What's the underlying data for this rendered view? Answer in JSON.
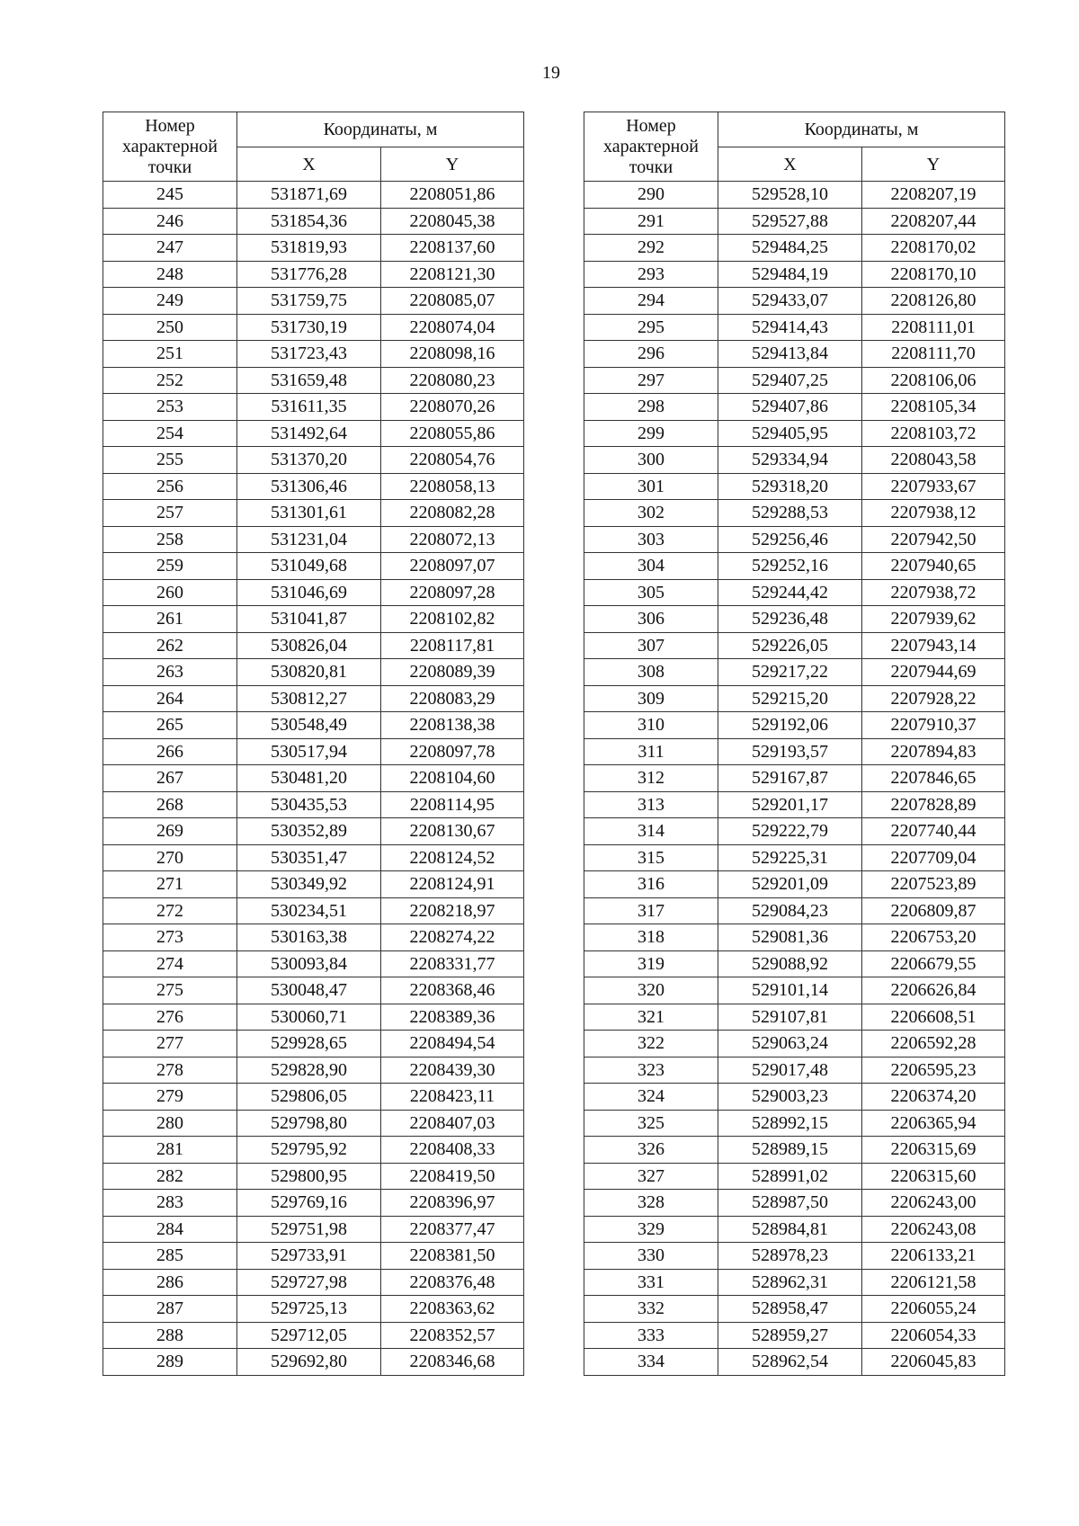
{
  "page_number": "19",
  "headers": {
    "point_number": "Номер характерной точки",
    "coordinates": "Координаты, м",
    "x": "X",
    "y": "Y"
  },
  "tables": [
    {
      "rows": [
        [
          "245",
          "531871,69",
          "2208051,86"
        ],
        [
          "246",
          "531854,36",
          "2208045,38"
        ],
        [
          "247",
          "531819,93",
          "2208137,60"
        ],
        [
          "248",
          "531776,28",
          "2208121,30"
        ],
        [
          "249",
          "531759,75",
          "2208085,07"
        ],
        [
          "250",
          "531730,19",
          "2208074,04"
        ],
        [
          "251",
          "531723,43",
          "2208098,16"
        ],
        [
          "252",
          "531659,48",
          "2208080,23"
        ],
        [
          "253",
          "531611,35",
          "2208070,26"
        ],
        [
          "254",
          "531492,64",
          "2208055,86"
        ],
        [
          "255",
          "531370,20",
          "2208054,76"
        ],
        [
          "256",
          "531306,46",
          "2208058,13"
        ],
        [
          "257",
          "531301,61",
          "2208082,28"
        ],
        [
          "258",
          "531231,04",
          "2208072,13"
        ],
        [
          "259",
          "531049,68",
          "2208097,07"
        ],
        [
          "260",
          "531046,69",
          "2208097,28"
        ],
        [
          "261",
          "531041,87",
          "2208102,82"
        ],
        [
          "262",
          "530826,04",
          "2208117,81"
        ],
        [
          "263",
          "530820,81",
          "2208089,39"
        ],
        [
          "264",
          "530812,27",
          "2208083,29"
        ],
        [
          "265",
          "530548,49",
          "2208138,38"
        ],
        [
          "266",
          "530517,94",
          "2208097,78"
        ],
        [
          "267",
          "530481,20",
          "2208104,60"
        ],
        [
          "268",
          "530435,53",
          "2208114,95"
        ],
        [
          "269",
          "530352,89",
          "2208130,67"
        ],
        [
          "270",
          "530351,47",
          "2208124,52"
        ],
        [
          "271",
          "530349,92",
          "2208124,91"
        ],
        [
          "272",
          "530234,51",
          "2208218,97"
        ],
        [
          "273",
          "530163,38",
          "2208274,22"
        ],
        [
          "274",
          "530093,84",
          "2208331,77"
        ],
        [
          "275",
          "530048,47",
          "2208368,46"
        ],
        [
          "276",
          "530060,71",
          "2208389,36"
        ],
        [
          "277",
          "529928,65",
          "2208494,54"
        ],
        [
          "278",
          "529828,90",
          "2208439,30"
        ],
        [
          "279",
          "529806,05",
          "2208423,11"
        ],
        [
          "280",
          "529798,80",
          "2208407,03"
        ],
        [
          "281",
          "529795,92",
          "2208408,33"
        ],
        [
          "282",
          "529800,95",
          "2208419,50"
        ],
        [
          "283",
          "529769,16",
          "2208396,97"
        ],
        [
          "284",
          "529751,98",
          "2208377,47"
        ],
        [
          "285",
          "529733,91",
          "2208381,50"
        ],
        [
          "286",
          "529727,98",
          "2208376,48"
        ],
        [
          "287",
          "529725,13",
          "2208363,62"
        ],
        [
          "288",
          "529712,05",
          "2208352,57"
        ],
        [
          "289",
          "529692,80",
          "2208346,68"
        ]
      ]
    },
    {
      "rows": [
        [
          "290",
          "529528,10",
          "2208207,19"
        ],
        [
          "291",
          "529527,88",
          "2208207,44"
        ],
        [
          "292",
          "529484,25",
          "2208170,02"
        ],
        [
          "293",
          "529484,19",
          "2208170,10"
        ],
        [
          "294",
          "529433,07",
          "2208126,80"
        ],
        [
          "295",
          "529414,43",
          "2208111,01"
        ],
        [
          "296",
          "529413,84",
          "2208111,70"
        ],
        [
          "297",
          "529407,25",
          "2208106,06"
        ],
        [
          "298",
          "529407,86",
          "2208105,34"
        ],
        [
          "299",
          "529405,95",
          "2208103,72"
        ],
        [
          "300",
          "529334,94",
          "2208043,58"
        ],
        [
          "301",
          "529318,20",
          "2207933,67"
        ],
        [
          "302",
          "529288,53",
          "2207938,12"
        ],
        [
          "303",
          "529256,46",
          "2207942,50"
        ],
        [
          "304",
          "529252,16",
          "2207940,65"
        ],
        [
          "305",
          "529244,42",
          "2207938,72"
        ],
        [
          "306",
          "529236,48",
          "2207939,62"
        ],
        [
          "307",
          "529226,05",
          "2207943,14"
        ],
        [
          "308",
          "529217,22",
          "2207944,69"
        ],
        [
          "309",
          "529215,20",
          "2207928,22"
        ],
        [
          "310",
          "529192,06",
          "2207910,37"
        ],
        [
          "311",
          "529193,57",
          "2207894,83"
        ],
        [
          "312",
          "529167,87",
          "2207846,65"
        ],
        [
          "313",
          "529201,17",
          "2207828,89"
        ],
        [
          "314",
          "529222,79",
          "2207740,44"
        ],
        [
          "315",
          "529225,31",
          "2207709,04"
        ],
        [
          "316",
          "529201,09",
          "2207523,89"
        ],
        [
          "317",
          "529084,23",
          "2206809,87"
        ],
        [
          "318",
          "529081,36",
          "2206753,20"
        ],
        [
          "319",
          "529088,92",
          "2206679,55"
        ],
        [
          "320",
          "529101,14",
          "2206626,84"
        ],
        [
          "321",
          "529107,81",
          "2206608,51"
        ],
        [
          "322",
          "529063,24",
          "2206592,28"
        ],
        [
          "323",
          "529017,48",
          "2206595,23"
        ],
        [
          "324",
          "529003,23",
          "2206374,20"
        ],
        [
          "325",
          "528992,15",
          "2206365,94"
        ],
        [
          "326",
          "528989,15",
          "2206315,69"
        ],
        [
          "327",
          "528991,02",
          "2206315,60"
        ],
        [
          "328",
          "528987,50",
          "2206243,00"
        ],
        [
          "329",
          "528984,81",
          "2206243,08"
        ],
        [
          "330",
          "528978,23",
          "2206133,21"
        ],
        [
          "331",
          "528962,31",
          "2206121,58"
        ],
        [
          "332",
          "528958,47",
          "2206055,24"
        ],
        [
          "333",
          "528959,27",
          "2206054,33"
        ],
        [
          "334",
          "528962,54",
          "2206045,83"
        ]
      ]
    }
  ]
}
